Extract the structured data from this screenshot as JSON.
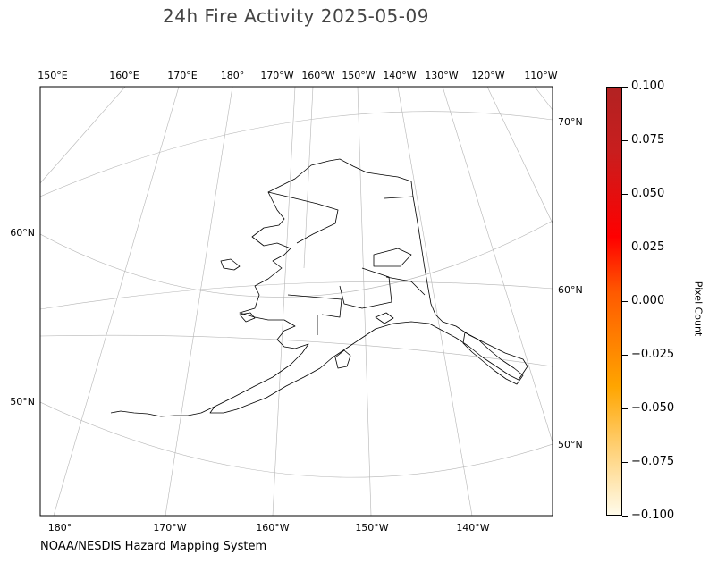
{
  "title": "24h Fire Activity 2025-05-09",
  "credit": "NOAA/NESDIS Hazard Mapping System",
  "map": {
    "region": "Alaska",
    "top_lon_labels": [
      "150°E",
      "160°E",
      "170°E",
      "180°",
      "170°W",
      "160°W",
      "150°W",
      "140°W",
      "130°W",
      "120°W",
      "110°W"
    ],
    "bottom_lon_labels": [
      "180°",
      "170°W",
      "160°W",
      "150°W",
      "140°W"
    ],
    "left_lat_labels": [
      "60°N",
      "50°N"
    ],
    "right_lat_labels": [
      "70°N",
      "60°N",
      "50°N"
    ],
    "gridlines": true,
    "fire_detections": []
  },
  "colorbar": {
    "label": "Pixel Count",
    "ticks": [
      "0.100",
      "0.075",
      "0.050",
      "0.025",
      "0.000",
      "−0.025",
      "−0.050",
      "−0.075",
      "−0.100"
    ],
    "colors": [
      "#fffbea",
      "#ffd27a",
      "#ffa500",
      "#ff5a00",
      "#ff0000",
      "#b22222"
    ]
  }
}
